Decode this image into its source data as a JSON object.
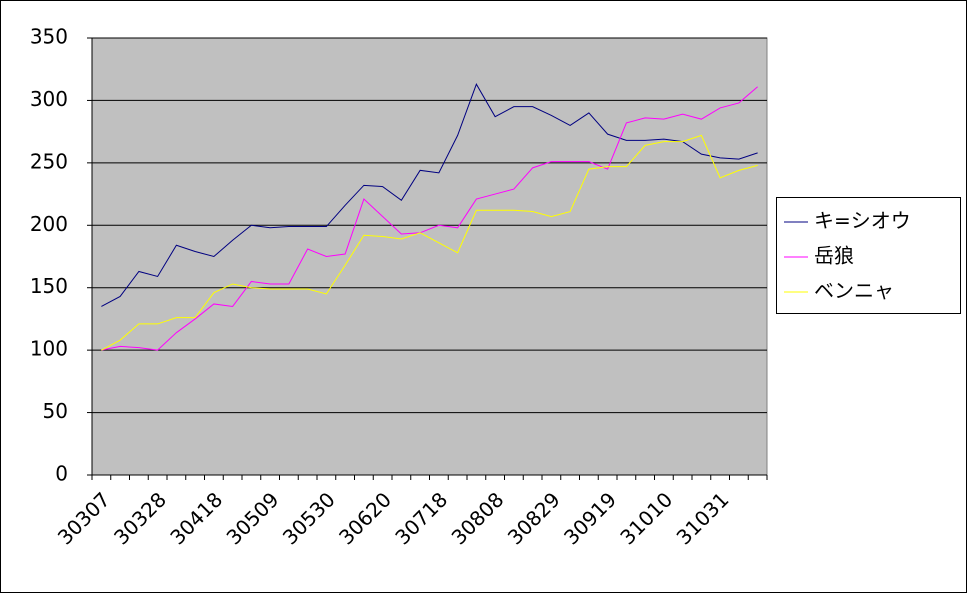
{
  "chart_data": {
    "type": "line",
    "categories": [
      "30307",
      null,
      null,
      "30328",
      null,
      null,
      "30418",
      null,
      null,
      "30509",
      null,
      null,
      "30530",
      null,
      null,
      "30620",
      null,
      null,
      "30718",
      null,
      null,
      "30808",
      null,
      null,
      "30829",
      null,
      null,
      "30919",
      null,
      null,
      "31010",
      null,
      null,
      "31031",
      null,
      null
    ],
    "series": [
      {
        "name": "キ=シオウ",
        "color": "#000080",
        "values": [
          135,
          143,
          163,
          159,
          184,
          179,
          175,
          188,
          200,
          198,
          199,
          199,
          199,
          216,
          232,
          231,
          220,
          244,
          242,
          272,
          313,
          287,
          295,
          295,
          288,
          280,
          290,
          273,
          268,
          268,
          269,
          267,
          257,
          254,
          253,
          258
        ]
      },
      {
        "name": "岳狼",
        "color": "#ff00ff",
        "values": [
          100,
          103,
          102,
          100,
          114,
          125,
          137,
          135,
          155,
          153,
          153,
          181,
          175,
          177,
          221,
          207,
          193,
          194,
          200,
          198,
          221,
          225,
          229,
          246,
          251,
          251,
          251,
          245,
          282,
          286,
          285,
          289,
          285,
          294,
          298,
          311
        ]
      },
      {
        "name": "ベンニャ",
        "color": "#ffff00",
        "values": [
          100,
          108,
          121,
          121,
          126,
          126,
          146,
          153,
          150,
          149,
          149,
          149,
          145,
          168,
          192,
          191,
          189,
          194,
          186,
          178,
          212,
          212,
          212,
          211,
          207,
          211,
          245,
          247,
          247,
          264,
          267,
          267,
          272,
          238,
          244,
          248
        ]
      }
    ],
    "ylim": [
      0,
      350
    ],
    "yticks": [
      0,
      50,
      100,
      150,
      200,
      250,
      300,
      350
    ],
    "grid": true,
    "legend": "right"
  }
}
